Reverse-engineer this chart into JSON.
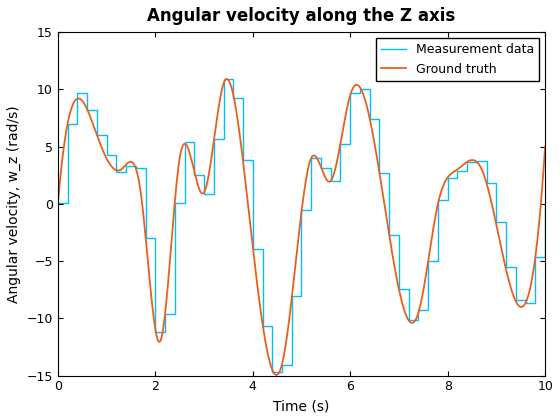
{
  "title": "Angular velocity along the Z axis",
  "xlabel": "Time (s)",
  "ylabel": "Angular velocity, w_z (rad/s)",
  "xlim": [
    0,
    10
  ],
  "ylim": [
    -15,
    15
  ],
  "xticks": [
    0,
    2,
    4,
    6,
    8,
    10
  ],
  "yticks": [
    -15,
    -10,
    -5,
    0,
    5,
    10,
    15
  ],
  "legend_labels": [
    "Measurement data",
    "Ground truth"
  ],
  "stair_color": "#00BFFF",
  "line_color": "#E8601C",
  "stair_linewidth": 1.0,
  "line_linewidth": 1.3,
  "background_color": "#ffffff",
  "legend_loc": "upper right",
  "title_fontsize": 12,
  "label_fontsize": 10,
  "gt_t": [
    0.0,
    0.5,
    0.8,
    1.3,
    1.7,
    2.1,
    2.5,
    3.0,
    3.4,
    3.9,
    4.6,
    5.2,
    5.6,
    6.0,
    6.7,
    7.4,
    7.8,
    8.2,
    8.7,
    9.5,
    10.0
  ],
  "gt_vals": [
    0.0,
    9.0,
    6.0,
    3.0,
    1.0,
    -12.0,
    4.0,
    1.0,
    10.5,
    0.0,
    -14.0,
    4.0,
    2.0,
    9.5,
    0.0,
    -9.5,
    0.0,
    3.0,
    3.0,
    -9.0,
    5.0
  ]
}
